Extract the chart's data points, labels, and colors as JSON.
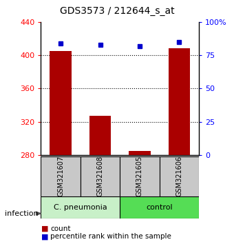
{
  "title": "GDS3573 / 212644_s_at",
  "samples": [
    "GSM321607",
    "GSM321608",
    "GSM321605",
    "GSM321606"
  ],
  "bar_counts": [
    405,
    327,
    285,
    408
  ],
  "percentile_ranks": [
    84,
    83,
    82,
    85
  ],
  "y_min": 280,
  "y_max": 440,
  "y_ticks": [
    280,
    320,
    360,
    400,
    440
  ],
  "y_right_ticks": [
    0,
    25,
    50,
    75,
    100
  ],
  "y_right_labels": [
    "0",
    "25",
    "50",
    "75",
    "100%"
  ],
  "grid_lines": [
    320,
    360,
    400
  ],
  "bar_color": "#AA0000",
  "dot_color": "#0000CC",
  "label_infection": "infection",
  "legend_count": "count",
  "legend_percentile": "percentile rank within the sample",
  "sample_box_color": "#c8c8c8",
  "pneumonia_label": "C. pneumonia",
  "control_label": "control",
  "pneumonia_bg": "#c8f0c8",
  "control_bg": "#55dd55",
  "title_fontsize": 10,
  "tick_fontsize": 8,
  "legend_fontsize": 7.5,
  "sample_fontsize": 7,
  "group_fontsize": 8
}
